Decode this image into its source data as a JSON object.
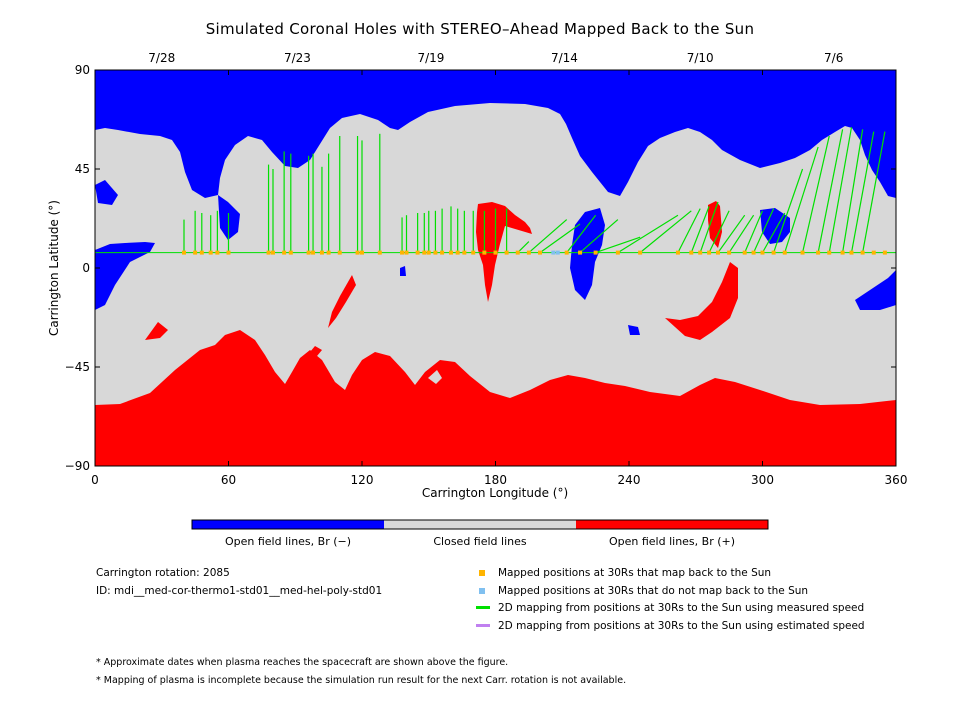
{
  "chart_data": {
    "type": "heatmap",
    "title": "Simulated Coronal Holes with STEREO–Ahead Mapped Back to the Sun",
    "xlabel": "Carrington Longitude (°)",
    "ylabel": "Carrington Latitude (°)",
    "xlim": [
      0,
      360
    ],
    "ylim": [
      -90,
      90
    ],
    "x_ticks": [
      0,
      60,
      120,
      180,
      240,
      300,
      360
    ],
    "y_ticks": [
      90,
      45,
      0,
      -45,
      -90
    ],
    "x_tick_labels": [
      "0",
      "60",
      "120",
      "180",
      "240",
      "300",
      "360"
    ],
    "y_tick_labels": [
      "90",
      "45",
      "0",
      "−45",
      "−90"
    ],
    "top_date_axis": [
      {
        "lon": 30,
        "label": "7/28"
      },
      {
        "lon": 91,
        "label": "7/23"
      },
      {
        "lon": 151,
        "label": "7/19"
      },
      {
        "lon": 211,
        "label": "7/14"
      },
      {
        "lon": 272,
        "label": "7/10"
      },
      {
        "lon": 332,
        "label": "7/6"
      }
    ],
    "colors": {
      "open_negative": "#0000ff",
      "closed": "#d8d8d8",
      "open_positive": "#ff0000",
      "mapped": "#ffb400",
      "not_mapped": "#80c0f0",
      "measured": "#00e000",
      "estimated": "#c080f0"
    },
    "colorbar": {
      "segments": [
        {
          "label": "Open field lines, Br (−)",
          "color": "#0000ff"
        },
        {
          "label": "Closed field lines",
          "color": "#d8d8d8"
        },
        {
          "label": "Open field lines, Br (+)",
          "color": "#ff0000"
        }
      ]
    },
    "mapping_latitude": 7,
    "mapped_longitudes": [
      40,
      45,
      48,
      52,
      55,
      60,
      78,
      80,
      85,
      88,
      96,
      98,
      102,
      105,
      110,
      118,
      120,
      128,
      138,
      140,
      145,
      148,
      150,
      153,
      156,
      160,
      163,
      166,
      170,
      175,
      180,
      185,
      190,
      195,
      200,
      212,
      218,
      225,
      235,
      245,
      262,
      268,
      272,
      276,
      280,
      285,
      292,
      296,
      300,
      305,
      310,
      318,
      325,
      330,
      336,
      340,
      345,
      350,
      355
    ],
    "not_mapped_longitudes": [
      206,
      208
    ],
    "field_lines_measured": [
      [
        40,
        22
      ],
      [
        45,
        26
      ],
      [
        48,
        25
      ],
      [
        52,
        24
      ],
      [
        55,
        26
      ],
      [
        60,
        25
      ],
      [
        78,
        47
      ],
      [
        80,
        45
      ],
      [
        85,
        53
      ],
      [
        88,
        52
      ],
      [
        96,
        51
      ],
      [
        98,
        52
      ],
      [
        102,
        46
      ],
      [
        105,
        52
      ],
      [
        110,
        60
      ],
      [
        118,
        60
      ],
      [
        120,
        58
      ],
      [
        128,
        61
      ],
      [
        138,
        23
      ],
      [
        140,
        24
      ],
      [
        145,
        25
      ],
      [
        148,
        25
      ],
      [
        150,
        26
      ],
      [
        153,
        26
      ],
      [
        156,
        27
      ],
      [
        160,
        28
      ],
      [
        163,
        27
      ],
      [
        166,
        26
      ],
      [
        170,
        26
      ],
      [
        175,
        26
      ],
      [
        180,
        27
      ],
      [
        185,
        27
      ],
      [
        195,
        12
      ],
      [
        212,
        22
      ],
      [
        218,
        20
      ],
      [
        225,
        24
      ],
      [
        235,
        22
      ],
      [
        245,
        14
      ],
      [
        262,
        24
      ],
      [
        268,
        26
      ],
      [
        272,
        27
      ],
      [
        276,
        28
      ],
      [
        280,
        30
      ],
      [
        285,
        26
      ],
      [
        292,
        24
      ],
      [
        296,
        24
      ],
      [
        300,
        26
      ],
      [
        305,
        27
      ],
      [
        310,
        25
      ],
      [
        318,
        45
      ],
      [
        325,
        55
      ],
      [
        330,
        60
      ],
      [
        336,
        63
      ],
      [
        340,
        64
      ],
      [
        345,
        63
      ],
      [
        350,
        62
      ],
      [
        355,
        62
      ]
    ]
  },
  "info": {
    "rotation": "Carrington rotation: 2085",
    "id": "ID: mdi__med-cor-thermo1-std01__med-hel-poly-std01"
  },
  "legend": {
    "mapped": "Mapped positions at 30Rs that map back to the Sun",
    "not_mapped": "Mapped positions at 30Rs that do not map back to the Sun",
    "measured": "2D mapping from positions at 30Rs to the Sun using measured speed",
    "estimated": "2D mapping from positions at 30Rs to the Sun using estimated speed"
  },
  "notes": {
    "n1": "* Approximate dates when plasma reaches the spacecraft are shown above the figure.",
    "n2": "* Mapping of plasma is incomplete because the simulation run result for the next Carr. rotation is not available."
  }
}
